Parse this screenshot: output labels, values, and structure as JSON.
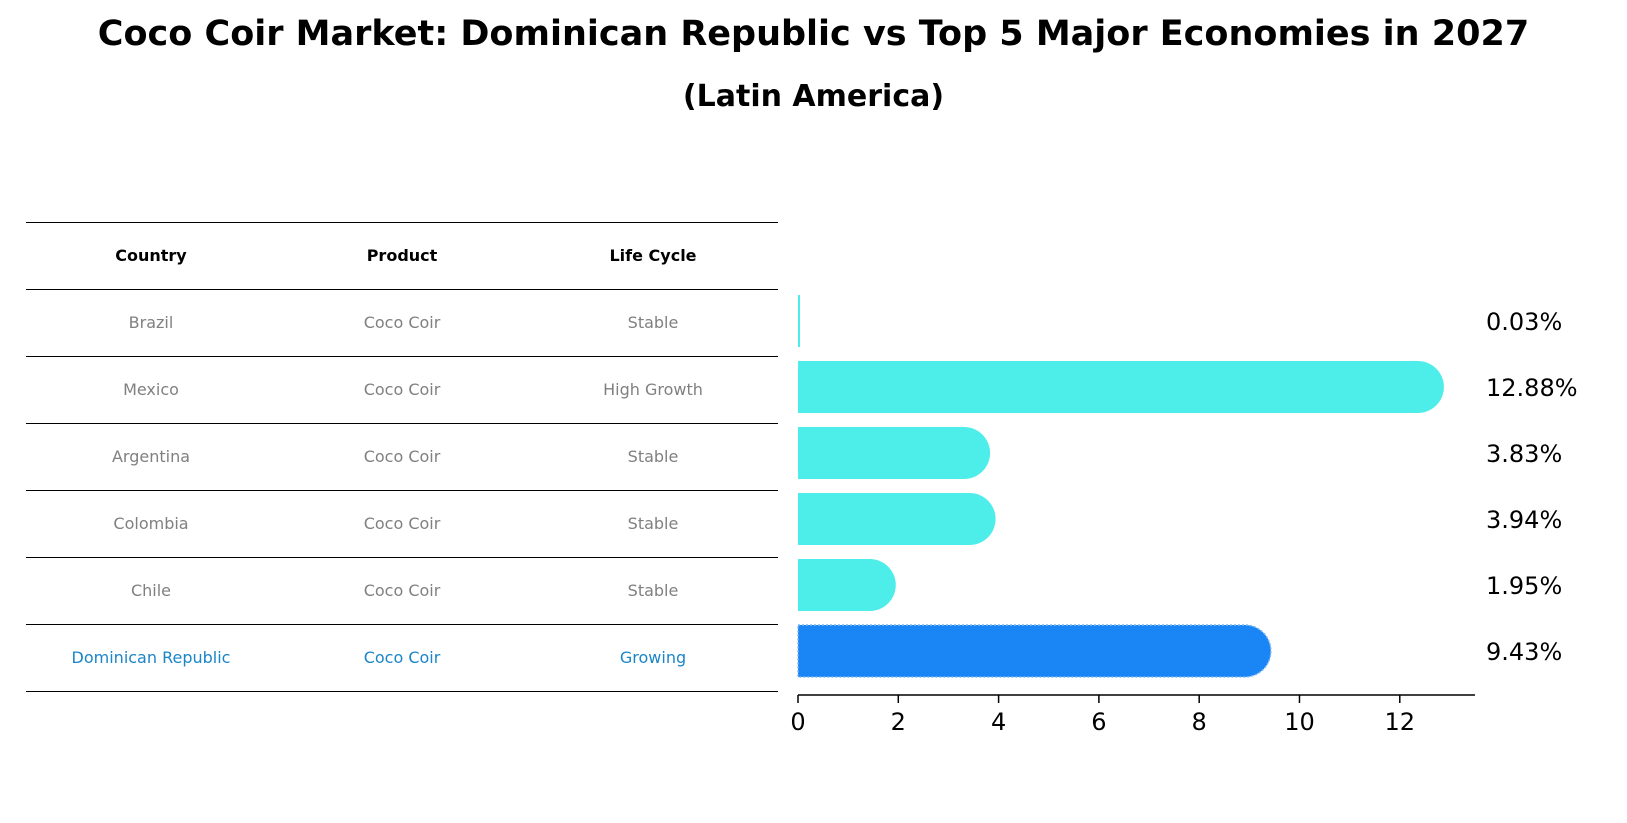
{
  "title": "Coco Coir Market: Dominican Republic vs Top 5 Major Economies in 2027",
  "subtitle": "(Latin America)",
  "table": {
    "headers": [
      "Country",
      "Product",
      "Life Cycle"
    ],
    "rows": [
      {
        "country": "Brazil",
        "product": "Coco Coir",
        "life_cycle": "Stable"
      },
      {
        "country": "Mexico",
        "product": "Coco Coir",
        "life_cycle": "High Growth"
      },
      {
        "country": "Argentina",
        "product": "Coco Coir",
        "life_cycle": "Stable"
      },
      {
        "country": "Colombia",
        "product": "Coco Coir",
        "life_cycle": "Stable"
      },
      {
        "country": "Chile",
        "product": "Coco Coir",
        "life_cycle": "Stable"
      },
      {
        "country": "Dominican Republic",
        "product": "Coco Coir",
        "life_cycle": "Growing"
      }
    ]
  },
  "chart_data": {
    "type": "bar",
    "orientation": "horizontal",
    "categories": [
      "Brazil",
      "Mexico",
      "Argentina",
      "Colombia",
      "Chile",
      "Dominican Republic"
    ],
    "values": [
      0.03,
      12.88,
      3.83,
      3.94,
      1.95,
      9.43
    ],
    "value_labels": [
      "0.03%",
      "12.88%",
      "3.83%",
      "3.94%",
      "1.95%",
      "9.43%"
    ],
    "highlight_index": 5,
    "xlim": [
      0,
      13.5
    ],
    "xticks": [
      0,
      2,
      4,
      6,
      8,
      10,
      12
    ],
    "tick_labels": [
      "0",
      "2",
      "4",
      "6",
      "8",
      "10",
      "12"
    ],
    "colors": {
      "default": "#4deeea",
      "highlight": "#1a85f5",
      "highlight_text": "#1a85c8"
    }
  }
}
